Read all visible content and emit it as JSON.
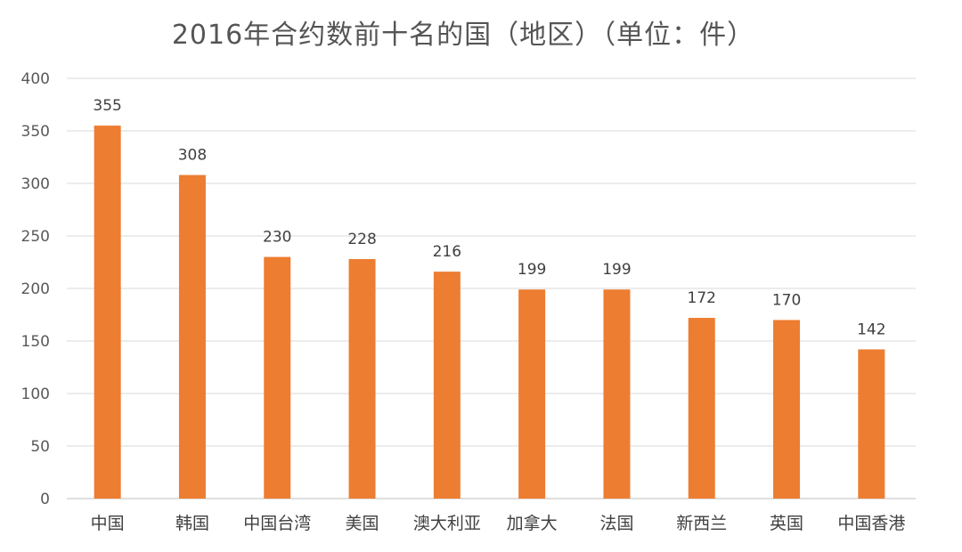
{
  "chart_data": {
    "type": "bar",
    "title": "2016年合约数前十名的国（地区）（单位：件）",
    "categories": [
      "中国",
      "韩国",
      "中国台湾",
      "美国",
      "澳大利亚",
      "加拿大",
      "法国",
      "新西兰",
      "英国",
      "中国香港"
    ],
    "values": [
      355,
      308,
      230,
      228,
      216,
      199,
      199,
      172,
      170,
      142
    ],
    "xlabel": "",
    "ylabel": "",
    "ylim": [
      0,
      400
    ],
    "yticks": [
      0,
      50,
      100,
      150,
      200,
      250,
      300,
      350,
      400
    ],
    "grid": true,
    "legend": "none",
    "bar_color": "#ED7D31",
    "data_labels": true
  }
}
